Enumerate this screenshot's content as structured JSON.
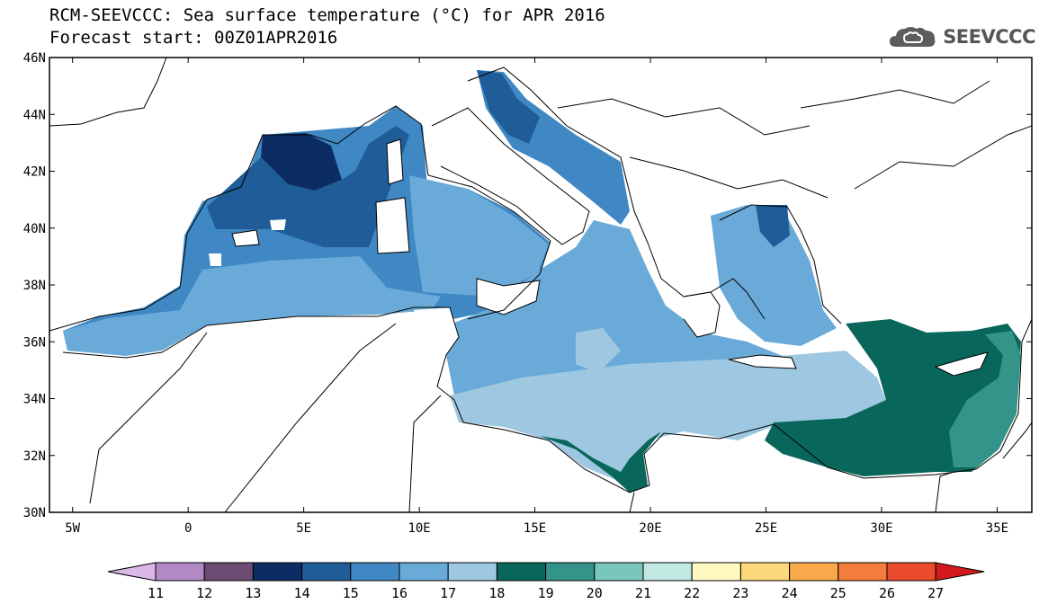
{
  "title": {
    "line1": "RCM-SEEVCCC: Sea surface temperature (°C) for APR 2016",
    "line2": "Forecast start: 00Z01APR2016"
  },
  "logo": {
    "text": "SEEVCCC",
    "icon": "cloud-logo-icon"
  },
  "map": {
    "lat_range": [
      30,
      46
    ],
    "lon_range": [
      -6,
      36.5
    ],
    "lat_ticks": [
      {
        "value": 46,
        "label": "46N"
      },
      {
        "value": 44,
        "label": "44N"
      },
      {
        "value": 42,
        "label": "42N"
      },
      {
        "value": 40,
        "label": "40N"
      },
      {
        "value": 38,
        "label": "38N"
      },
      {
        "value": 36,
        "label": "36N"
      },
      {
        "value": 34,
        "label": "34N"
      },
      {
        "value": 32,
        "label": "32N"
      },
      {
        "value": 30,
        "label": "30N"
      }
    ],
    "lon_ticks": [
      {
        "value": -5,
        "label": "5W"
      },
      {
        "value": 0,
        "label": "0"
      },
      {
        "value": 5,
        "label": "5E"
      },
      {
        "value": 10,
        "label": "10E"
      },
      {
        "value": 15,
        "label": "15E"
      },
      {
        "value": 20,
        "label": "20E"
      },
      {
        "value": 25,
        "label": "25E"
      },
      {
        "value": 30,
        "label": "30E"
      },
      {
        "value": 35,
        "label": "35E"
      }
    ]
  },
  "colorbar": {
    "labels": [
      "11",
      "12",
      "13",
      "14",
      "15",
      "16",
      "17",
      "18",
      "19",
      "20",
      "21",
      "22",
      "23",
      "24",
      "25",
      "26",
      "27"
    ],
    "low_color": "#dcb8e6",
    "high_color": "#d21a1c",
    "colors": [
      "#b289c4",
      "#6a4c73",
      "#0b2d64",
      "#1f5c98",
      "#3f88c4",
      "#6aaad8",
      "#9ec8e2",
      "#08675a",
      "#34948a",
      "#79c7bc",
      "#c2e8e2",
      "#fff9c0",
      "#fdd87a",
      "#f9a94a",
      "#f37d3c",
      "#ea4b2c"
    ]
  },
  "sst_colors": {
    "c14": "#0b2d64",
    "c15": "#1f5c98",
    "c16": "#3f88c4",
    "c17": "#6aaad8",
    "c18": "#9ec8e2",
    "c19": "#08675a",
    "c20": "#34948a"
  }
}
